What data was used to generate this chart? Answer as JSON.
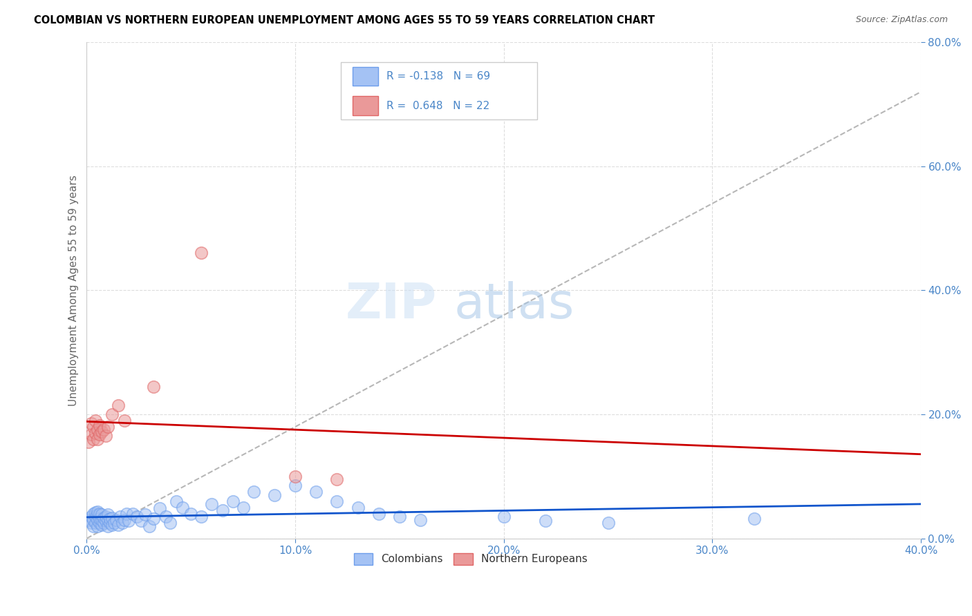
{
  "title": "COLOMBIAN VS NORTHERN EUROPEAN UNEMPLOYMENT AMONG AGES 55 TO 59 YEARS CORRELATION CHART",
  "source": "Source: ZipAtlas.com",
  "ylabel": "Unemployment Among Ages 55 to 59 years",
  "xlim": [
    0.0,
    0.4
  ],
  "ylim": [
    0.0,
    0.8
  ],
  "colombians_color": "#a4c2f4",
  "colombians_edge": "#6d9eeb",
  "northern_europeans_color": "#ea9999",
  "northern_europeans_edge": "#e06666",
  "regression_colombians_color": "#1155cc",
  "regression_northern_europeans_color": "#cc0000",
  "regression_dashed_color": "#b7b7b7",
  "R_colombians": -0.138,
  "N_colombians": 69,
  "R_northern_europeans": 0.648,
  "N_northern_europeans": 22,
  "legend_label_colombians": "Colombians",
  "legend_label_northern_europeans": "Northern Europeans",
  "watermark_zip": "ZIP",
  "watermark_atlas": "atlas",
  "background_color": "#ffffff",
  "grid_color": "#dddddd",
  "tick_color": "#4a86c8",
  "title_color": "#000000",
  "ylabel_color": "#666666",
  "source_color": "#666666"
}
